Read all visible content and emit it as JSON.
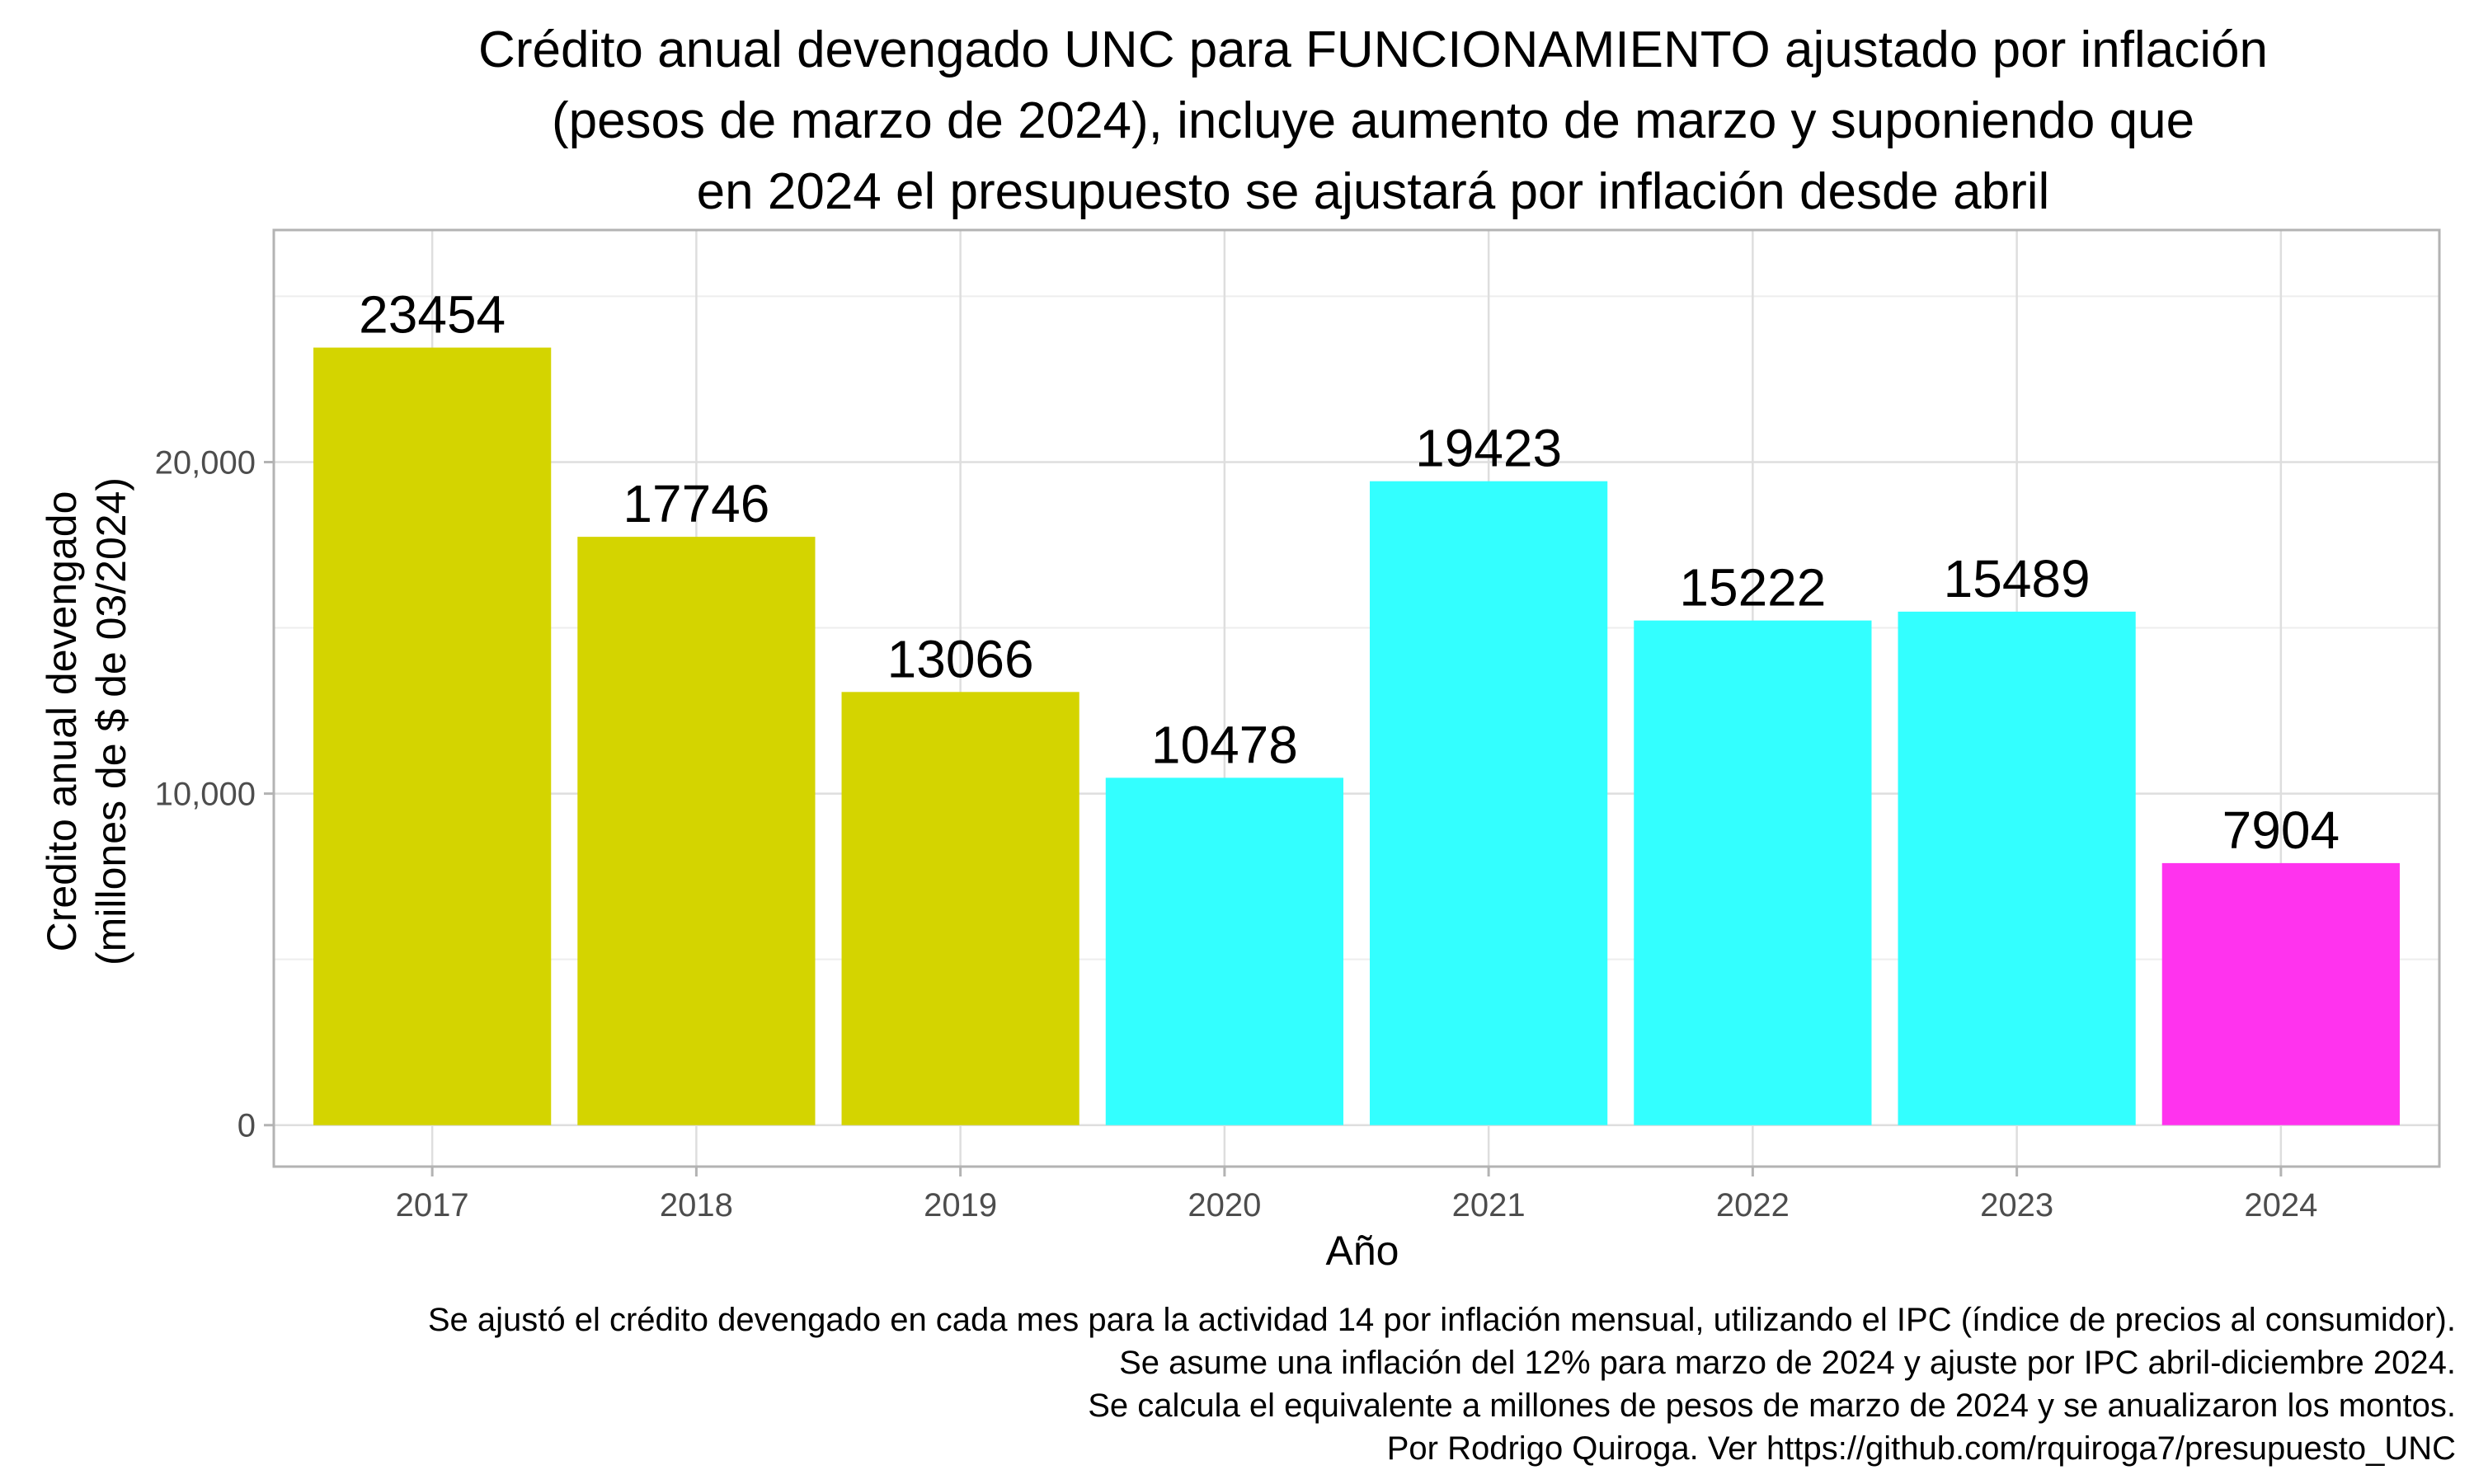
{
  "chart_data": {
    "type": "bar",
    "title_lines": [
      "Crédito anual devengado UNC para FUNCIONAMIENTO ajustado por inflación",
      "(pesos de marzo de 2024), incluye aumento de marzo y suponiendo que",
      "en 2024 el presupuesto se ajustará por inflación desde abril"
    ],
    "xlabel": "Año",
    "ylabel_lines": [
      "Credito anual devengado",
      "(millones de $ de 03/2024)"
    ],
    "categories": [
      "2017",
      "2018",
      "2019",
      "2020",
      "2021",
      "2022",
      "2023",
      "2024"
    ],
    "values": [
      23454,
      17746,
      13066,
      10478,
      19423,
      15222,
      15489,
      7904
    ],
    "data_labels": [
      "23454",
      "17746",
      "13066",
      "10478",
      "19423",
      "15222",
      "15489",
      "7904"
    ],
    "bar_colors": [
      "#d4d400",
      "#d4d400",
      "#d4d400",
      "#33ffff",
      "#33ffff",
      "#33ffff",
      "#33ffff",
      "#ff33ee"
    ],
    "y_ticks": [
      0,
      10000,
      20000
    ],
    "y_tick_labels": [
      "0",
      "10,000",
      "20,000"
    ],
    "ylim": [
      -1250,
      27000
    ],
    "grid": true,
    "legend": "none",
    "caption_lines": [
      "Se ajustó el crédito devengado en cada mes para la actividad 14 por inflación mensual, utilizando el IPC (índice de precios al consumidor).",
      "Se asume una inflación del 12% para marzo de 2024 y ajuste por IPC abril-diciembre 2024.",
      "Se calcula el equivalente a millones de pesos de marzo de 2024 y se anualizaron los montos.",
      "Por Rodrigo Quiroga. Ver https://github.com/rquiroga7/presupuesto_UNC"
    ]
  }
}
